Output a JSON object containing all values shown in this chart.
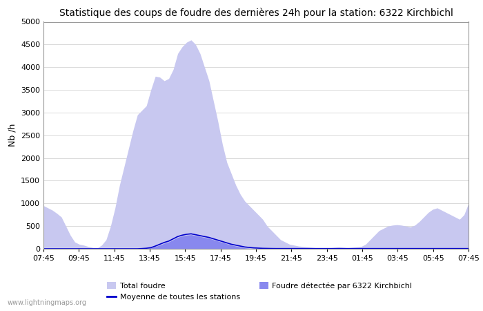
{
  "title": "Statistique des coups de foudre des dernières 24h pour la station: 6322 Kirchbichl",
  "ylabel": "Nb /h",
  "watermark": "www.lightningmaps.org",
  "ylim": [
    0,
    5000
  ],
  "yticks": [
    0,
    500,
    1000,
    1500,
    2000,
    2500,
    3000,
    3500,
    4000,
    4500,
    5000
  ],
  "xtick_labels": [
    "07:45",
    "09:45",
    "11:45",
    "13:45",
    "15:45",
    "17:45",
    "19:45",
    "21:45",
    "23:45",
    "01:45",
    "03:45",
    "05:45",
    "07:45"
  ],
  "color_total": "#c8c8f0",
  "color_local": "#8888ee",
  "color_mean": "#0000cc",
  "background_color": "#ffffff",
  "grid_color": "#cccccc",
  "title_fontsize": 10,
  "legend_labels": [
    "Total foudre",
    "Moyenne de toutes les stations",
    "Foudre détectée par 6322 Kirchbichl"
  ],
  "total_foudre": [
    950,
    900,
    850,
    780,
    700,
    500,
    300,
    150,
    100,
    80,
    50,
    30,
    20,
    80,
    200,
    500,
    900,
    1400,
    1800,
    2200,
    2600,
    2950,
    3050,
    3150,
    3500,
    3800,
    3780,
    3700,
    3750,
    3950,
    4300,
    4450,
    4550,
    4600,
    4500,
    4300,
    4000,
    3700,
    3250,
    2800,
    2300,
    1900,
    1650,
    1400,
    1200,
    1050,
    950,
    850,
    750,
    650,
    500,
    400,
    300,
    200,
    150,
    100,
    80,
    60,
    50,
    40,
    30,
    20,
    10,
    10,
    20,
    30,
    40,
    30,
    20,
    30,
    40,
    50,
    100,
    200,
    300,
    400,
    450,
    500,
    520,
    530,
    520,
    500,
    480,
    520,
    600,
    700,
    800,
    870,
    900,
    850,
    800,
    750,
    700,
    650,
    750,
    1000
  ],
  "local_foudre": [
    0,
    0,
    0,
    0,
    0,
    0,
    0,
    0,
    0,
    0,
    0,
    0,
    0,
    0,
    0,
    0,
    0,
    0,
    0,
    0,
    0,
    0,
    5,
    10,
    20,
    50,
    80,
    120,
    150,
    200,
    250,
    280,
    300,
    310,
    290,
    270,
    250,
    230,
    200,
    170,
    140,
    110,
    80,
    60,
    40,
    20,
    10,
    5,
    0,
    0,
    0,
    0,
    0,
    0,
    0,
    0,
    0,
    0,
    0,
    0,
    0,
    0,
    0,
    0,
    0,
    0,
    0,
    0,
    0,
    0,
    0,
    0,
    0,
    0,
    0,
    0,
    0,
    0,
    0,
    0,
    0,
    0,
    0,
    0,
    0,
    0,
    0,
    0,
    0,
    0,
    0,
    0,
    0,
    0,
    0,
    0
  ],
  "mean_line": [
    0,
    0,
    0,
    0,
    0,
    0,
    0,
    0,
    0,
    0,
    0,
    0,
    0,
    0,
    0,
    0,
    0,
    0,
    0,
    0,
    0,
    0,
    5,
    12,
    25,
    60,
    100,
    140,
    170,
    220,
    270,
    300,
    320,
    330,
    310,
    290,
    270,
    250,
    220,
    190,
    160,
    130,
    100,
    80,
    60,
    40,
    30,
    20,
    15,
    10,
    8,
    6,
    5,
    5,
    5,
    5,
    5,
    5,
    5,
    5,
    5,
    5,
    5,
    5,
    5,
    5,
    5,
    5,
    5,
    5,
    5,
    5,
    5,
    5,
    5,
    5,
    5,
    5,
    5,
    5,
    5,
    5,
    5,
    5,
    5,
    5,
    5,
    5,
    5,
    5,
    5,
    5,
    5,
    5,
    5,
    5
  ],
  "n_points": 96
}
